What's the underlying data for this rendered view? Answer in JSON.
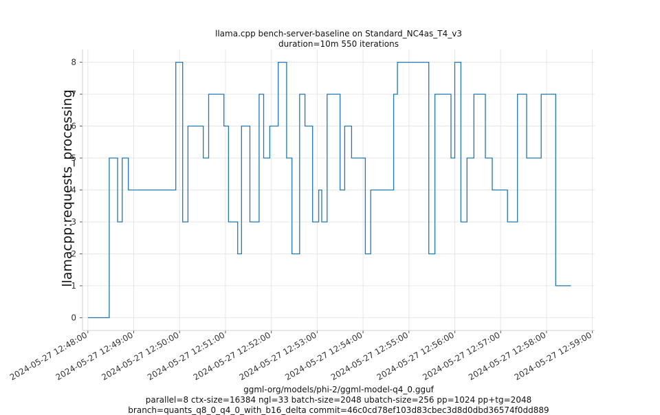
{
  "chart_data": {
    "type": "line",
    "title": "llama.cpp bench-server-baseline on Standard_NC4as_T4_v3",
    "subtitle": "duration=10m 550 iterations",
    "xlabel": "",
    "ylabel": "llamacpp:requests_processing",
    "ylim": [
      -0.4,
      8.4
    ],
    "xlim": [
      "2024-05-27 12:47:53",
      "2024-05-27 12:59:03"
    ],
    "grid": true,
    "y_ticks": [
      "0",
      "1",
      "2",
      "3",
      "4",
      "5",
      "6",
      "7",
      "8"
    ],
    "x_ticks": [
      "2024-05-27 12:48:00",
      "2024-05-27 12:49:00",
      "2024-05-27 12:50:00",
      "2024-05-27 12:51:00",
      "2024-05-27 12:52:00",
      "2024-05-27 12:53:00",
      "2024-05-27 12:54:00",
      "2024-05-27 12:55:00",
      "2024-05-27 12:56:00",
      "2024-05-27 12:57:00",
      "2024-05-27 12:58:00",
      "2024-05-27 12:59:00"
    ],
    "series": [
      {
        "color": "#1f77b4",
        "x": [
          "12:48:00",
          "12:48:28",
          "12:48:31",
          "12:48:39",
          "12:48:45",
          "12:48:53",
          "12:49:45",
          "12:49:55",
          "12:50:04",
          "12:50:11",
          "12:50:31",
          "12:50:38",
          "12:50:58",
          "12:51:04",
          "12:51:16",
          "12:51:21",
          "12:51:32",
          "12:51:44",
          "12:51:50",
          "12:51:58",
          "12:52:09",
          "12:52:20",
          "12:52:27",
          "12:52:37",
          "12:52:44",
          "12:52:54",
          "12:53:02",
          "12:53:06",
          "12:53:13",
          "12:53:30",
          "12:53:36",
          "12:53:45",
          "12:54:03",
          "12:54:10",
          "12:54:40",
          "12:54:45",
          "12:55:26",
          "12:55:34",
          "12:55:55",
          "12:56:00",
          "12:56:08",
          "12:56:16",
          "12:56:25",
          "12:56:40",
          "12:56:49",
          "12:57:09",
          "12:57:14",
          "12:57:22",
          "12:57:26",
          "12:57:34",
          "12:57:53",
          "12:57:57",
          "12:58:06",
          "12:58:12",
          "12:58:32"
        ],
        "y": [
          0,
          5,
          5,
          3,
          5,
          4,
          4,
          8,
          3,
          6,
          5,
          7,
          6,
          3,
          2,
          6,
          3,
          7,
          5,
          6,
          8,
          5,
          2,
          7,
          6,
          3,
          4,
          3,
          7,
          4,
          6,
          5,
          2,
          4,
          7,
          8,
          2,
          7,
          5,
          8,
          3,
          5,
          7,
          5,
          4,
          3,
          3,
          7,
          7,
          5,
          7,
          7,
          7,
          1,
          1
        ]
      }
    ]
  },
  "footer": {
    "line1": "ggml-org/models/phi-2/ggml-model-q4_0.gguf",
    "line2": "parallel=8 ctx-size=16384 ngl=33 batch-size=2048 ubatch-size=256 pp=1024 pp+tg=2048",
    "line3": "branch=quants_q8_0_q4_0_with_b16_delta commit=46c0cd78ef103d83cbec3d8d0dbd36574f0dd889"
  }
}
